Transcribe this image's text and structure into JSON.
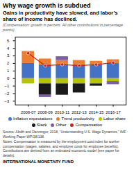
{
  "chart_data": {
    "type": "bar",
    "stacked": true,
    "title": "Why wage growth is subdued",
    "subtitle": "Gains in productivity have slowed, and labor’s share of income has declined.",
    "annotations": [
      "(Compensation: growth in percent. All other contributions in percentage points)",
      "Source: Abdih and Danninger, 2018, “Understanding U.S. Wage Dynamics,” IMF Working Paper WP/18/138.",
      "Notes: Compensation is measured by the employment cost index for worker compensation (wages, salaries, and employer costs for employee benefits). Contributions are derived from an estimated economic model (see paper for details).",
      "INTERNATIONAL MONETARY FUND"
    ],
    "categories": [
      "2008-07",
      "2008-09",
      "2010-11",
      "2012-13",
      "2014-15",
      "2016-17"
    ],
    "series": [
      {
        "name": "Inflation expectations",
        "color": "#4472c4",
        "values": [
          2.0,
          1.8,
          1.8,
          1.8,
          1.8,
          2.0
        ]
      },
      {
        "name": "Trend productivity",
        "color": "#ed7d31",
        "values": [
          1.6,
          0.8,
          0.6,
          0.6,
          0.5,
          0.5
        ]
      },
      {
        "name": "Labor share",
        "color": "#b5c300",
        "values": [
          -0.7,
          -0.7,
          -0.7,
          -0.7,
          -0.7,
          -0.4
        ]
      },
      {
        "name": "Slack",
        "color": "#1a1a1a",
        "values": [
          0.0,
          -1.5,
          -1.5,
          -1.2,
          -0.3,
          0.0
        ]
      },
      {
        "name": "Other",
        "color": "#7b5ea7",
        "values": [
          0.0,
          -0.3,
          0.5,
          0.0,
          0.0,
          -0.4
        ]
      },
      {
        "name": "Compensation",
        "type": "line",
        "marker": "circle",
        "color": "#cc2222",
        "values": [
          3.35,
          1.7,
          1.85,
          1.7,
          1.85,
          2.1
        ]
      }
    ],
    "ylim": [
      -3.5,
      5.5
    ],
    "yticks": [
      -3,
      -2,
      -1,
      0,
      1,
      2,
      3,
      4,
      5
    ],
    "grid": false,
    "legend": "bottom"
  }
}
